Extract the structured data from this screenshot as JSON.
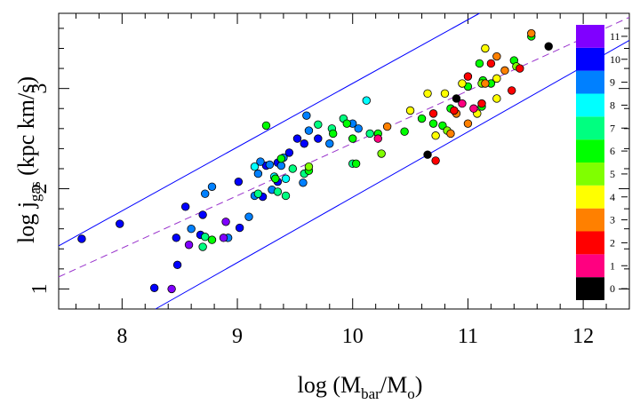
{
  "chart_data": {
    "type": "scatter",
    "xlabel": [
      "log (M",
      "bar",
      "/M",
      "o",
      ")"
    ],
    "ylabel": [
      "log j",
      "gas",
      " (kpc km/s)"
    ],
    "xlim": [
      7.45,
      12.4
    ],
    "ylim": [
      0.8,
      3.75
    ],
    "xticks": [
      8,
      9,
      10,
      11,
      12
    ],
    "yticks": [
      1,
      2,
      3
    ],
    "xticks_minor": [
      7.6,
      7.8,
      8.2,
      8.4,
      8.6,
      8.8,
      9.2,
      9.4,
      9.6,
      9.8,
      10.2,
      10.4,
      10.6,
      10.8,
      11.2,
      11.4,
      11.6,
      11.8,
      12.2
    ],
    "yticks_minor": [
      0.8,
      1.2,
      1.4,
      1.6,
      1.8,
      2.2,
      2.4,
      2.6,
      2.8,
      3.2,
      3.4,
      3.6
    ],
    "colorbar": {
      "labels": [
        0,
        1,
        2,
        3,
        4,
        5,
        6,
        7,
        8,
        9,
        10,
        11
      ],
      "colors": [
        "#000000",
        "#ff0080",
        "#ff0000",
        "#ff8000",
        "#ffff00",
        "#80ff00",
        "#00ff00",
        "#00ff80",
        "#00ffff",
        "#0080ff",
        "#0000ff",
        "#8000ff"
      ]
    },
    "lines": [
      {
        "x": [
          7.45,
          11.1
        ],
        "y": [
          1.43,
          3.75
        ],
        "color": "#0000ff",
        "dash": false
      },
      {
        "x": [
          8.29,
          12.4
        ],
        "y": [
          0.8,
          3.48
        ],
        "color": "#0000ff",
        "dash": false
      },
      {
        "x": [
          7.45,
          12.4
        ],
        "y": [
          1.12,
          3.71
        ],
        "color": "#9933cc",
        "dash": true
      }
    ],
    "x": [
      7.65,
      7.98,
      8.28,
      8.48,
      8.47,
      8.55,
      8.68,
      8.7,
      9.01,
      9.02,
      9.25,
      9.35,
      9.45,
      9.52,
      9.58,
      9.7,
      9.22,
      9.35,
      8.6,
      8.72,
      8.78,
      8.92,
      9.1,
      9.18,
      9.2,
      9.28,
      9.3,
      9.38,
      9.4,
      9.6,
      9.62,
      9.57,
      9.8,
      10.0,
      10.05,
      9.15,
      8.43,
      8.58,
      8.88,
      8.9,
      9.15,
      9.42,
      10.12,
      9.32,
      8.72,
      8.7,
      9.18,
      9.35,
      9.42,
      9.48,
      9.58,
      9.7,
      9.82,
      9.92,
      10.0,
      10.15,
      8.78,
      9.25,
      9.33,
      9.38,
      9.62,
      9.83,
      9.95,
      10.0,
      10.03,
      10.22,
      10.45,
      10.6,
      10.7,
      10.78,
      10.85,
      11.0,
      11.1,
      11.13,
      11.2,
      11.4,
      11.55,
      11.12,
      9.62,
      10.25,
      10.82,
      11.12,
      11.42,
      10.5,
      10.65,
      10.72,
      10.8,
      10.95,
      11.15,
      11.25,
      11.08,
      11.25,
      10.3,
      10.85,
      10.9,
      11.0,
      11.15,
      11.25,
      11.32,
      11.55,
      10.7,
      10.72,
      10.88,
      11.0,
      11.2,
      11.38,
      11.45,
      11.12,
      10.22,
      10.95,
      11.05,
      10.65,
      10.9,
      11.7
    ],
    "y": [
      1.5,
      1.65,
      1.01,
      1.24,
      1.51,
      1.82,
      1.54,
      1.74,
      2.07,
      1.61,
      2.23,
      2.26,
      2.36,
      2.5,
      2.45,
      2.5,
      1.92,
      2.07,
      1.6,
      1.95,
      2.02,
      1.51,
      1.72,
      2.15,
      2.27,
      2.24,
      1.99,
      2.23,
      2.31,
      2.73,
      2.58,
      2.06,
      2.45,
      2.65,
      2.6,
      1.93,
      1.0,
      1.44,
      1.51,
      1.67,
      2.22,
      2.1,
      2.88,
      2.12,
      1.52,
      1.42,
      1.95,
      1.97,
      1.93,
      2.2,
      2.15,
      2.64,
      2.6,
      2.7,
      2.25,
      2.55,
      1.49,
      2.63,
      2.1,
      2.3,
      2.18,
      2.55,
      2.65,
      2.5,
      2.25,
      2.55,
      2.57,
      2.7,
      2.65,
      2.63,
      2.8,
      3.02,
      3.25,
      3.08,
      3.05,
      3.28,
      3.52,
      2.82,
      2.22,
      2.35,
      2.58,
      3.05,
      3.22,
      2.78,
      2.95,
      2.53,
      2.95,
      3.05,
      3.4,
      3.1,
      2.75,
      2.9,
      2.62,
      2.55,
      2.75,
      2.65,
      3.05,
      3.32,
      3.18,
      3.55,
      2.75,
      2.28,
      2.78,
      3.12,
      3.25,
      2.98,
      3.2,
      2.85,
      2.5,
      2.85,
      2.8,
      2.34,
      2.9,
      3.42
    ],
    "c": [
      10,
      10,
      10,
      10,
      10,
      10,
      10,
      10,
      10,
      10,
      10,
      10,
      10,
      10,
      10,
      10,
      10,
      10,
      9,
      9,
      9,
      9,
      9,
      9,
      9,
      9,
      9,
      9,
      9,
      9,
      9,
      9,
      9,
      9,
      9,
      9,
      11,
      11,
      11,
      11,
      8,
      8,
      8,
      8,
      7,
      7,
      7,
      7,
      7,
      7,
      7,
      7,
      7,
      7,
      7,
      7,
      6,
      6,
      6,
      6,
      6,
      6,
      6,
      6,
      6,
      6,
      6,
      6,
      6,
      6,
      6,
      6,
      6,
      6,
      6,
      6,
      6,
      6,
      5,
      5,
      5,
      5,
      5,
      4,
      4,
      4,
      4,
      4,
      4,
      4,
      4,
      4,
      3,
      3,
      3,
      3,
      3,
      3,
      3,
      3,
      2,
      2,
      2,
      2,
      2,
      2,
      2,
      2,
      1,
      1,
      1,
      0,
      0,
      0
    ]
  }
}
